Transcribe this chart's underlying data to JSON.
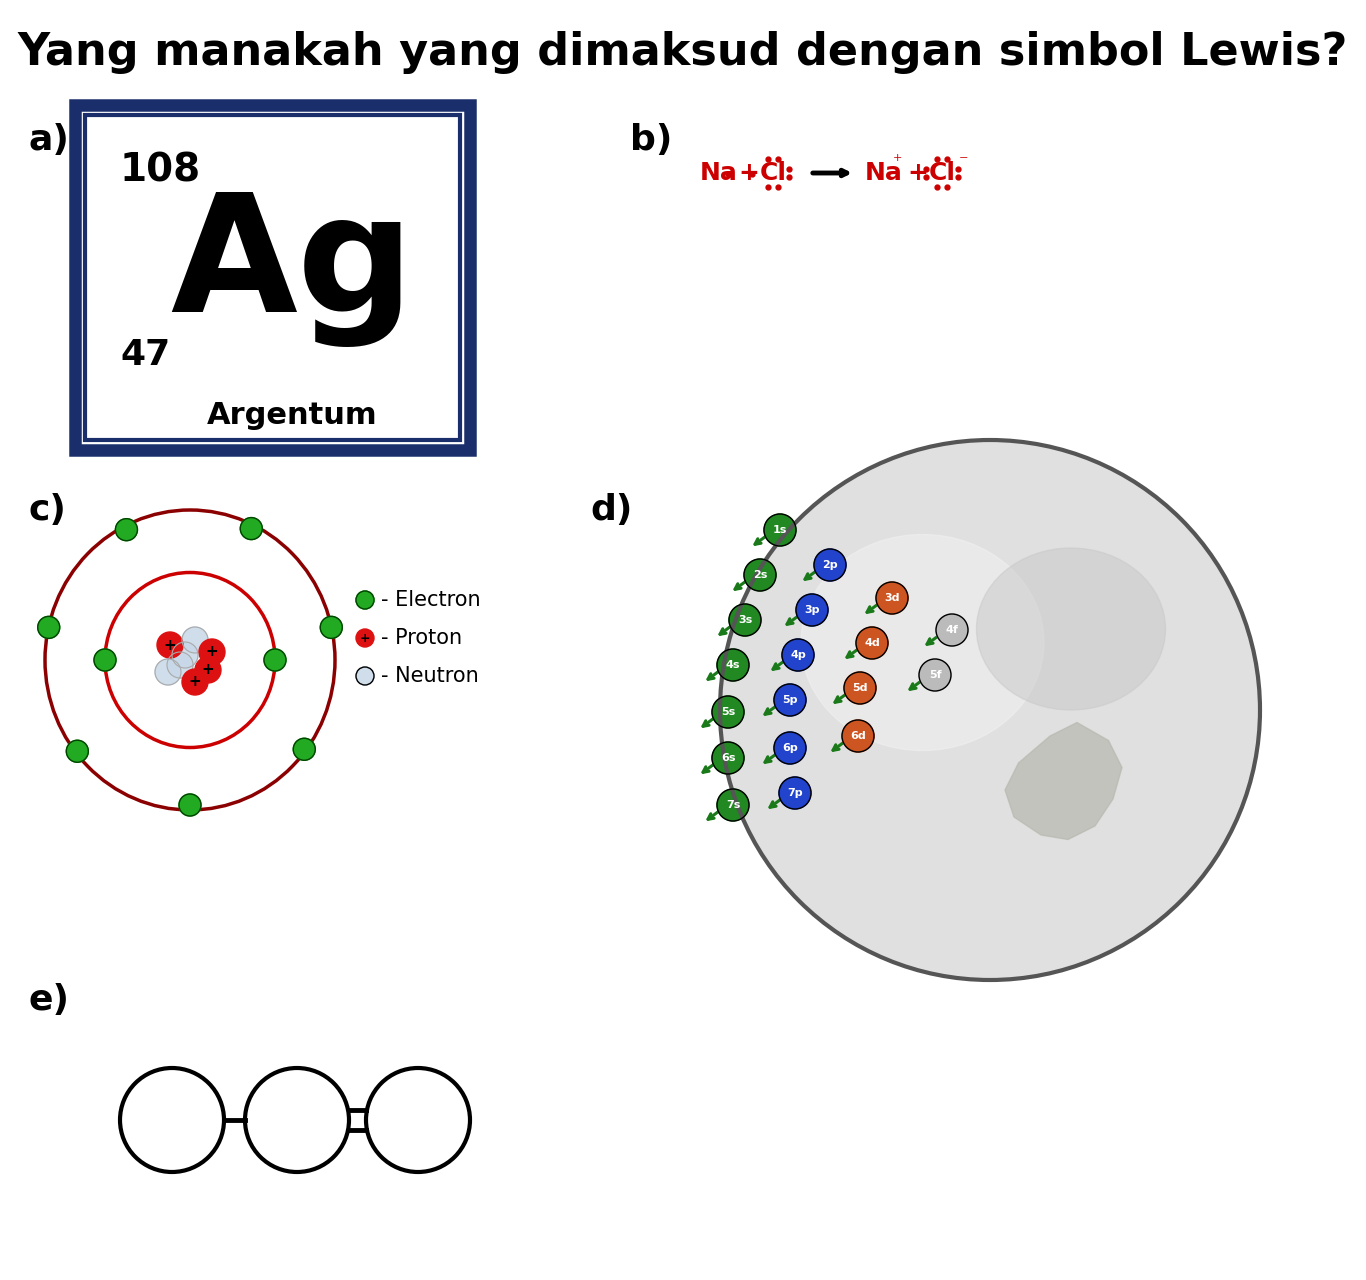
{
  "title": "Yang manakah yang dimaksud dengan simbol Lewis?",
  "title_fontsize": 32,
  "bg_color": "#ffffff",
  "label_a": "a)",
  "label_b": "b)",
  "label_c": "c)",
  "label_d": "d)",
  "label_e": "e)",
  "label_fontsize": 26,
  "ag_mass": "108",
  "ag_symbol": "Ag",
  "ag_number": "47",
  "ag_name": "Argentum",
  "box_outer_color": "#1a2e6b",
  "box_inner_color": "#1a2e6b",
  "electron_color": "#22aa22",
  "proton_color": "#cc2222",
  "neutron_color": "#e0e0e0",
  "arrow_color": "#1a7a1a",
  "globe_fill": "#d8d8d8",
  "globe_border": "#555555",
  "globe_sheen": "#f0f0f0"
}
